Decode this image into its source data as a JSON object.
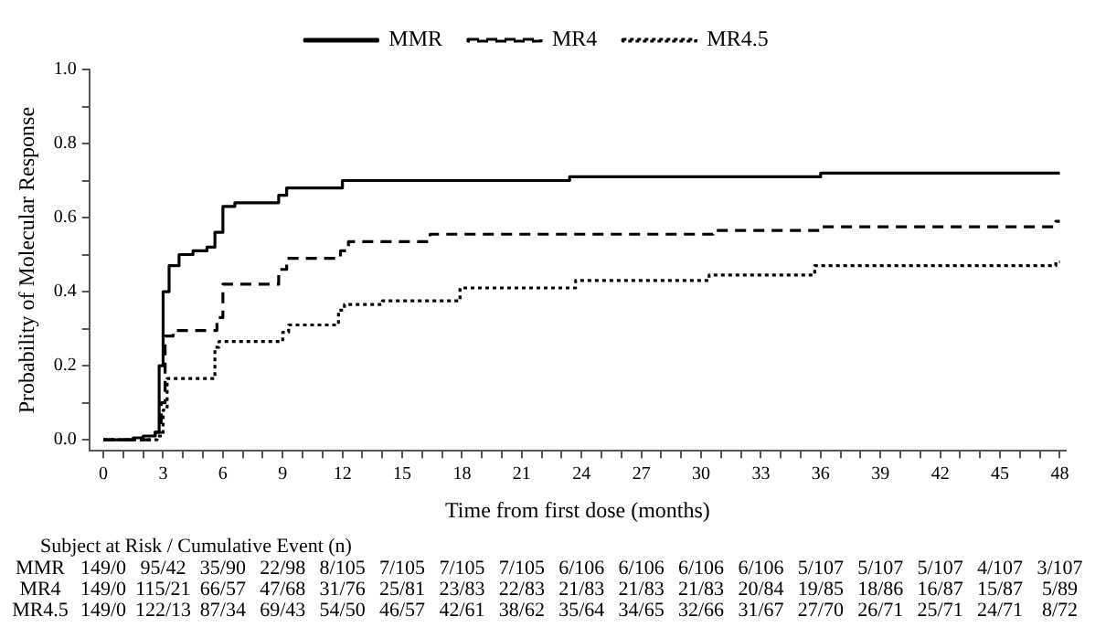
{
  "chart_data": {
    "type": "step",
    "xlabel": "Time from first dose (months)",
    "ylabel": "Probability of Molecular Response",
    "xlim": [
      -0.7,
      48.3
    ],
    "ylim": [
      -0.03,
      1.0
    ],
    "xticks": [
      0,
      {
        "value": 1,
        "label": null
      },
      {
        "value": 2,
        "label": null
      },
      3,
      {
        "value": 4,
        "label": null
      },
      {
        "value": 5,
        "label": null
      },
      6,
      {
        "value": 7,
        "label": null
      },
      {
        "value": 8,
        "label": null
      },
      9,
      {
        "value": 10,
        "label": null
      },
      {
        "value": 11,
        "label": null
      },
      12,
      {
        "value": 13,
        "label": null
      },
      {
        "value": 14,
        "label": null
      },
      15,
      {
        "value": 16,
        "label": null
      },
      {
        "value": 17,
        "label": null
      },
      18,
      {
        "value": 19,
        "label": null
      },
      {
        "value": 20,
        "label": null
      },
      21,
      {
        "value": 22,
        "label": null
      },
      {
        "value": 23,
        "label": null
      },
      24,
      {
        "value": 25,
        "label": null
      },
      {
        "value": 26,
        "label": null
      },
      27,
      {
        "value": 28,
        "label": null
      },
      {
        "value": 29,
        "label": null
      },
      30,
      {
        "value": 31,
        "label": null
      },
      {
        "value": 32,
        "label": null
      },
      33,
      {
        "value": 34,
        "label": null
      },
      {
        "value": 35,
        "label": null
      },
      36,
      {
        "value": 37,
        "label": null
      },
      {
        "value": 38,
        "label": null
      },
      39,
      {
        "value": 40,
        "label": null
      },
      {
        "value": 41,
        "label": null
      },
      42,
      {
        "value": 43,
        "label": null
      },
      {
        "value": 44,
        "label": null
      },
      45,
      {
        "value": 46,
        "label": null
      },
      {
        "value": 47,
        "label": null
      },
      48
    ],
    "yticks": [
      {
        "value": 0,
        "label": "0.0"
      },
      {
        "value": 0.1,
        "label": null
      },
      {
        "value": 0.2,
        "label": "0.2"
      },
      {
        "value": 0.3,
        "label": null
      },
      {
        "value": 0.4,
        "label": "0.4"
      },
      {
        "value": 0.5,
        "label": null
      },
      {
        "value": 0.6,
        "label": "0.6"
      },
      {
        "value": 0.7,
        "label": null
      },
      {
        "value": 0.8,
        "label": "0.8"
      },
      {
        "value": 0.9,
        "label": null
      },
      {
        "value": 1,
        "label": "1.0"
      }
    ],
    "grid": false,
    "legend": "top",
    "marker": "none",
    "series": [
      {
        "name": "MMR",
        "color": "#000000",
        "line_style": "solid",
        "x": [
          0,
          1.5,
          2,
          2.6,
          2.8,
          3,
          3.3,
          3.8,
          4.5,
          5.2,
          5.6,
          6,
          6.6,
          8.8,
          9.2,
          12,
          23.4,
          36,
          48
        ],
        "values": [
          0,
          0.005,
          0.01,
          0.02,
          0.2,
          0.4,
          0.47,
          0.5,
          0.51,
          0.52,
          0.56,
          0.63,
          0.64,
          0.66,
          0.68,
          0.7,
          0.71,
          0.72,
          0.72
        ]
      },
      {
        "name": "MR4",
        "color": "#000000",
        "line_style": "dashed",
        "x": [
          0,
          2.6,
          2.9,
          3.1,
          3.5,
          5.7,
          6,
          8.8,
          9.2,
          11.9,
          12.3,
          16.4,
          30.6,
          36,
          47.8,
          48
        ],
        "values": [
          0,
          0.02,
          0.1,
          0.28,
          0.295,
          0.33,
          0.42,
          0.46,
          0.49,
          0.51,
          0.535,
          0.555,
          0.565,
          0.575,
          0.59,
          0.59
        ]
      },
      {
        "name": "MR4.5",
        "color": "#000000",
        "line_style": "dotted",
        "x": [
          0,
          2.7,
          3,
          3.2,
          5.6,
          5.8,
          9,
          9.3,
          11.8,
          12.1,
          14,
          17.9,
          23.7,
          30.4,
          35.7,
          47.8,
          48
        ],
        "values": [
          0,
          0.01,
          0.08,
          0.165,
          0.25,
          0.265,
          0.29,
          0.31,
          0.35,
          0.365,
          0.375,
          0.41,
          0.43,
          0.445,
          0.47,
          0.48,
          0.48
        ]
      }
    ],
    "annotations": [
      "Subject at Risk / Cumulative Event (n)",
      "MMR",
      "149/0",
      "95/42",
      "35/90",
      "22/98",
      "8/105",
      "7/105",
      "7/105",
      "7/105",
      "6/106",
      "6/106",
      "6/106",
      "6/106",
      "5/107",
      "5/107",
      "5/107",
      "4/107",
      "3/107",
      "MR4",
      "149/0",
      "115/21",
      "66/57",
      "47/68",
      "31/76",
      "25/81",
      "23/83",
      "22/83",
      "21/83",
      "21/83",
      "21/83",
      "20/84",
      "19/85",
      "18/86",
      "16/87",
      "15/87",
      "5/89",
      "MR4.5",
      "149/0",
      "122/13",
      "87/34",
      "69/43",
      "54/50",
      "46/57",
      "42/61",
      "38/62",
      "35/64",
      "34/65",
      "32/66",
      "31/67",
      "27/70",
      "26/71",
      "25/71",
      "24/71",
      "8/72"
    ]
  }
}
